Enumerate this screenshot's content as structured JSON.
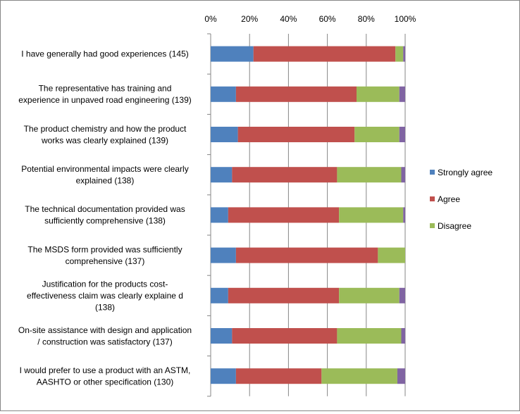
{
  "chart_data": {
    "type": "bar",
    "orientation": "horizontal",
    "stacked": "percent",
    "xlim": [
      0,
      100
    ],
    "ticks": [
      "0%",
      "20%",
      "40%",
      "60%",
      "80%",
      "100%"
    ],
    "categories": [
      [
        "I have generally had good experiences (145)"
      ],
      [
        "The representative has training and",
        "experience in unpaved road engineering (139)"
      ],
      [
        "The product chemistry and how the product",
        "works was clearly explained (139)"
      ],
      [
        "Potential environmental impacts were clearly",
        "explained (138)"
      ],
      [
        "The technical documentation provided was",
        "sufficiently comprehensive (138)"
      ],
      [
        "The MSDS form provided was sufficiently",
        "comprehensive (137)"
      ],
      [
        "Justification for the products cost-",
        "effectiveness claim was clearly explaine d",
        "(138)"
      ],
      [
        "On-site assistance with design and application",
        "/ construction was satisfactory (137)"
      ],
      [
        "I would prefer to use a product with an ASTM,",
        "AASHTO or other specification (130)"
      ]
    ],
    "series": [
      {
        "name": "Strongly agree",
        "color": "#4f81bd",
        "values": [
          22,
          13,
          14,
          11,
          9,
          13,
          9,
          11,
          13
        ]
      },
      {
        "name": "Agree",
        "color": "#c0504d",
        "values": [
          73,
          62,
          60,
          54,
          57,
          73,
          57,
          54,
          44
        ]
      },
      {
        "name": "Disagree",
        "color": "#9bbb59",
        "values": [
          4,
          22,
          23,
          33,
          33,
          14,
          31,
          33,
          39
        ]
      },
      {
        "name": "",
        "color": "#8064a2",
        "values": [
          1,
          3,
          3,
          2,
          1,
          0,
          3,
          2,
          4
        ]
      }
    ],
    "legend_position": "right",
    "grid": true
  }
}
